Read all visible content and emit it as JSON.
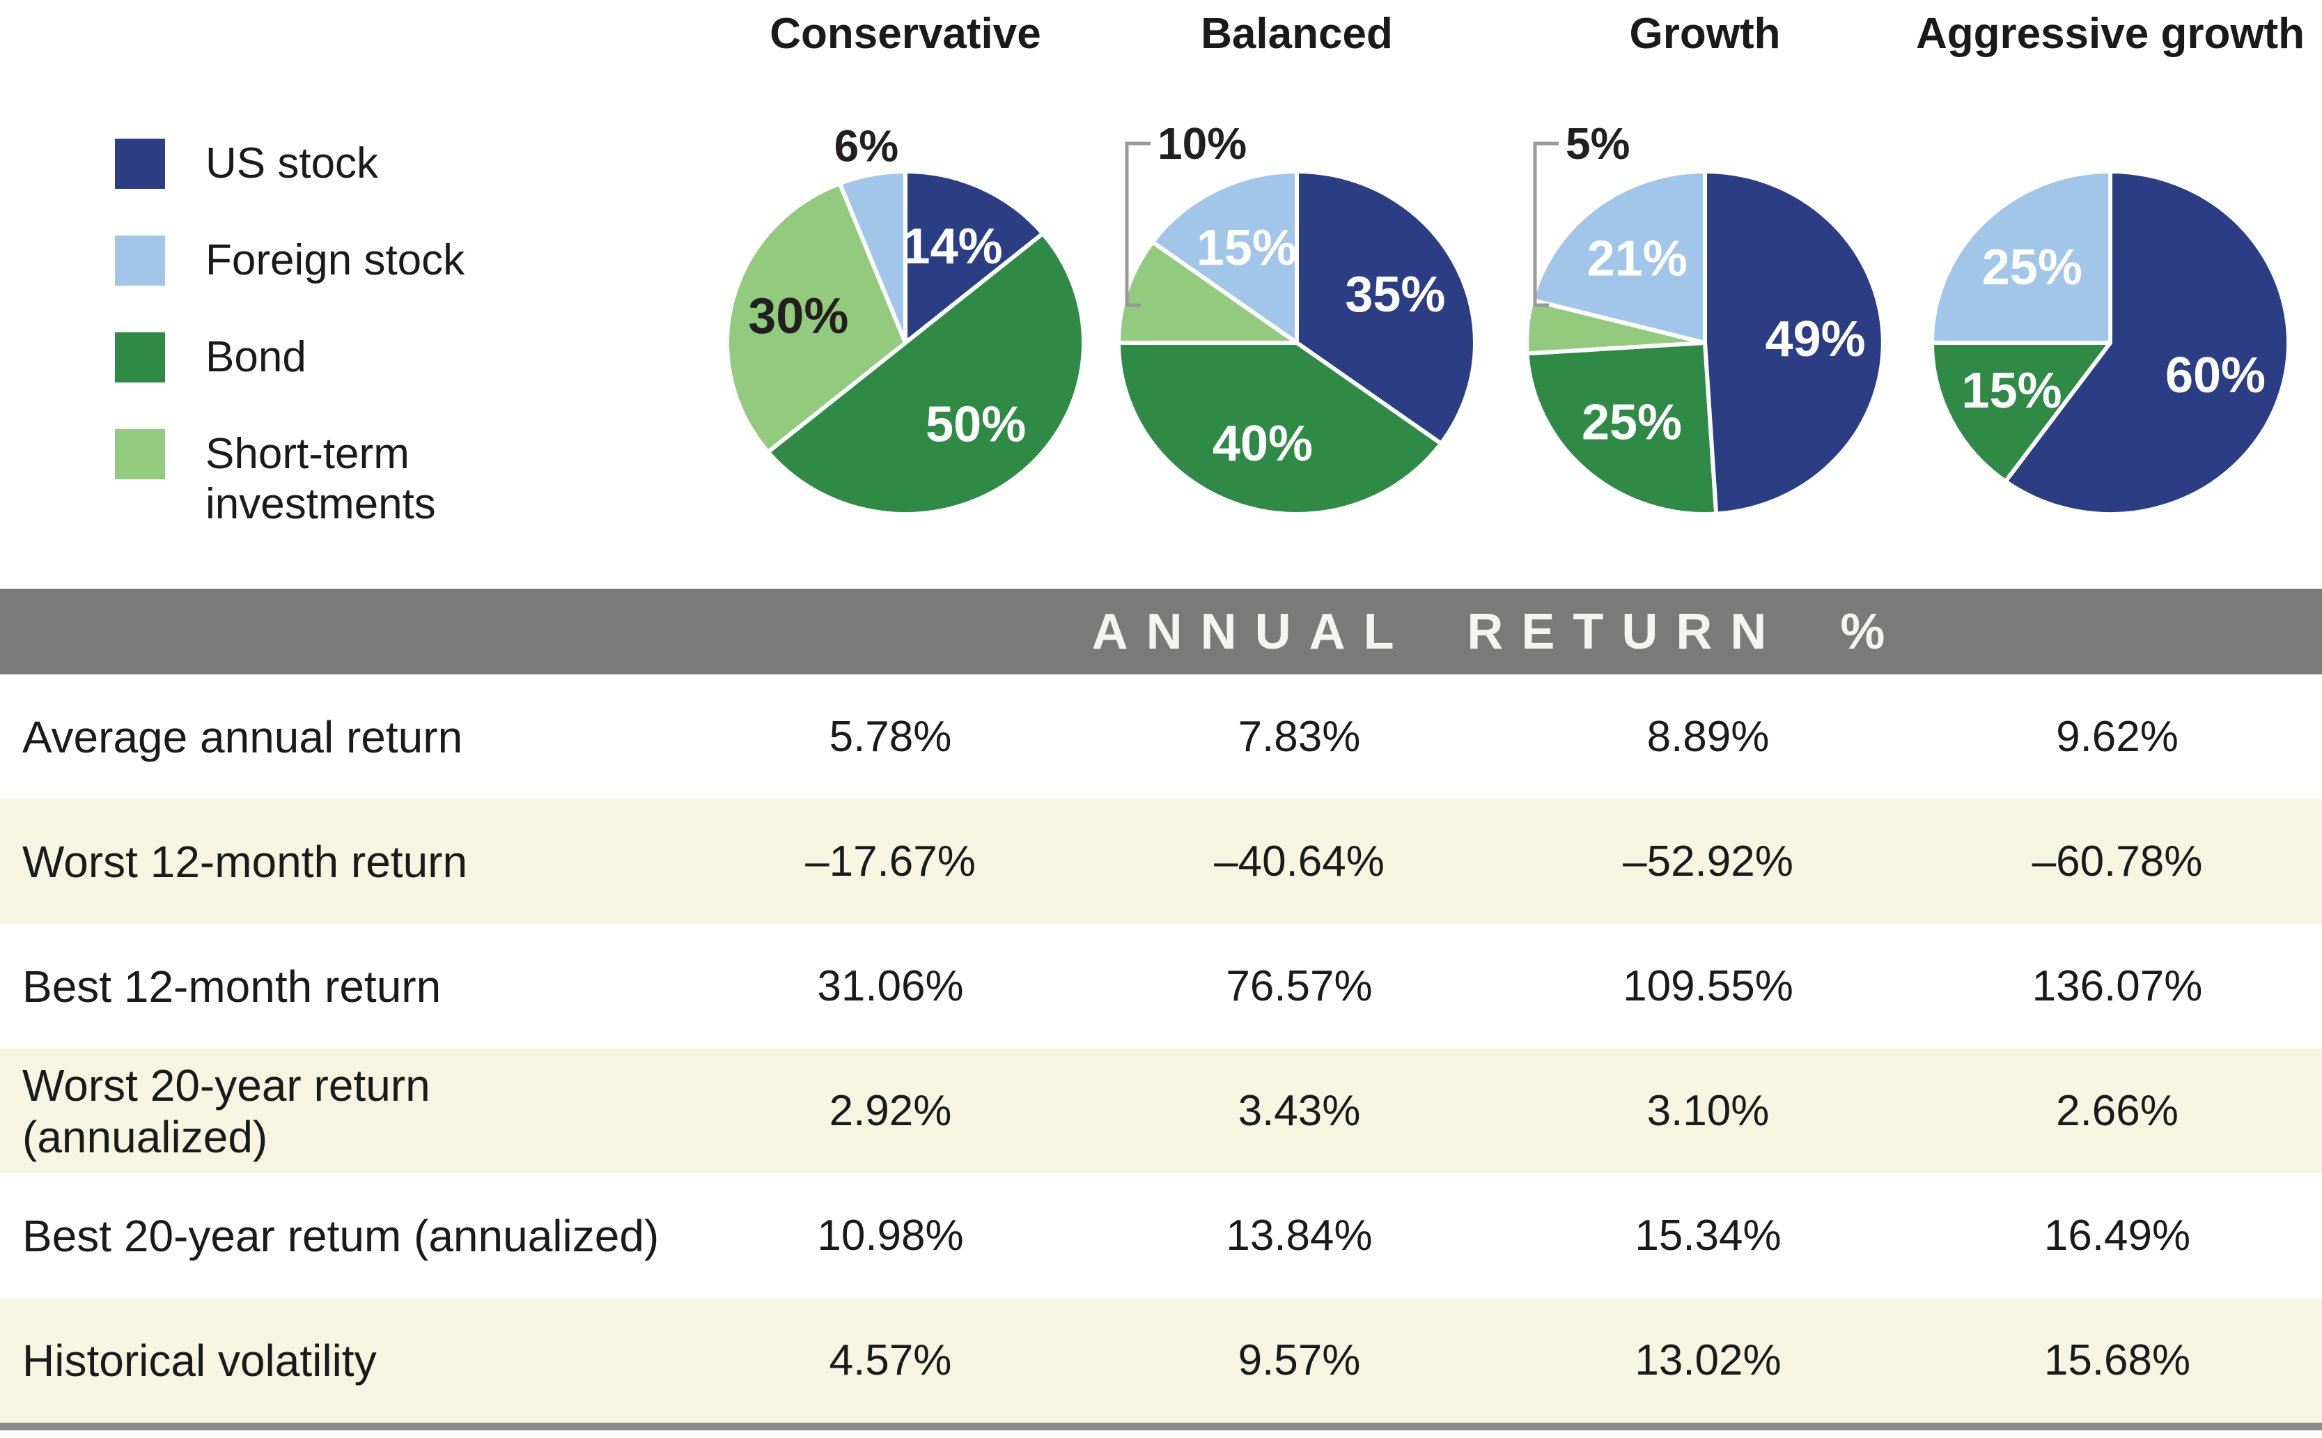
{
  "colors": {
    "us_stock": "#2B3D83",
    "foreign_stock": "#A2C6E9",
    "bond": "#2F8A45",
    "short_term": "#92CB7E",
    "header_bar": "#7A7A7A",
    "row_alt": "#F6F5E2",
    "row_plain": "#FFFFFF",
    "bottom_bar": "#8A8A8A",
    "bracket": "#999999",
    "label_dark": "#231F20",
    "label_light": "#FFFFFF"
  },
  "legend": {
    "items": [
      {
        "label": "US stock",
        "color_key": "us_stock"
      },
      {
        "label": "Foreign stock",
        "color_key": "foreign_stock"
      },
      {
        "label": "Bond",
        "color_key": "bond"
      },
      {
        "label": "Short-term investments",
        "color_key": "short_term"
      }
    ]
  },
  "chart_data": [
    {
      "type": "pie",
      "title": "Conservative",
      "slices": [
        {
          "name": "US stock",
          "color_key": "us_stock",
          "value": 14,
          "label": "14%"
        },
        {
          "name": "Bond",
          "color_key": "bond",
          "value": 50,
          "label": "50%"
        },
        {
          "name": "Short-term investments",
          "color_key": "short_term",
          "value": 30,
          "label": "30%"
        },
        {
          "name": "Foreign stock",
          "color_key": "foreign_stock",
          "value": 6,
          "label": "6%"
        }
      ],
      "outside_label": "Foreign stock",
      "bracket": false
    },
    {
      "type": "pie",
      "title": "Balanced",
      "slices": [
        {
          "name": "US stock",
          "color_key": "us_stock",
          "value": 35,
          "label": "35%"
        },
        {
          "name": "Bond",
          "color_key": "bond",
          "value": 40,
          "label": "40%"
        },
        {
          "name": "Short-term investments",
          "color_key": "short_term",
          "value": 10,
          "label": "10%"
        },
        {
          "name": "Foreign stock",
          "color_key": "foreign_stock",
          "value": 15,
          "label": "15%"
        }
      ],
      "outside_label": "Short-term investments",
      "bracket": true
    },
    {
      "type": "pie",
      "title": "Growth",
      "slices": [
        {
          "name": "US stock",
          "color_key": "us_stock",
          "value": 49,
          "label": "49%"
        },
        {
          "name": "Bond",
          "color_key": "bond",
          "value": 25,
          "label": "25%"
        },
        {
          "name": "Short-term investments",
          "color_key": "short_term",
          "value": 5,
          "label": "5%"
        },
        {
          "name": "Foreign stock",
          "color_key": "foreign_stock",
          "value": 21,
          "label": "21%"
        }
      ],
      "outside_label": "Short-term investments",
      "bracket": true
    },
    {
      "type": "pie",
      "title": "Aggressive growth",
      "slices": [
        {
          "name": "US stock",
          "color_key": "us_stock",
          "value": 60,
          "label": "60%"
        },
        {
          "name": "Bond",
          "color_key": "bond",
          "value": 15,
          "label": "15%"
        },
        {
          "name": "Foreign stock",
          "color_key": "foreign_stock",
          "value": 25,
          "label": "25%"
        }
      ],
      "outside_label": null,
      "bracket": false
    }
  ],
  "table": {
    "header": "ANNUAL RETURN %",
    "columns": [
      "Conservative",
      "Balanced",
      "Growth",
      "Aggressive growth"
    ],
    "rows": [
      {
        "label": "Average annual return",
        "values": [
          "5.78%",
          "7.83%",
          "8.89%",
          "9.62%"
        ]
      },
      {
        "label": "Worst 12-month return",
        "values": [
          "–17.67%",
          "–40.64%",
          "–52.92%",
          "–60.78%"
        ]
      },
      {
        "label": "Best 12-month return",
        "values": [
          "31.06%",
          "76.57%",
          "109.55%",
          "136.07%"
        ]
      },
      {
        "label": "Worst 20-year return (annualized)",
        "values": [
          "2.92%",
          "3.43%",
          "3.10%",
          "2.66%"
        ]
      },
      {
        "label": "Best 20-year retum (annualized)",
        "values": [
          "10.98%",
          "13.84%",
          "15.34%",
          "16.49%"
        ]
      },
      {
        "label": "Historical volatility",
        "values": [
          "4.57%",
          "9.57%",
          "13.02%",
          "15.68%"
        ]
      }
    ]
  }
}
